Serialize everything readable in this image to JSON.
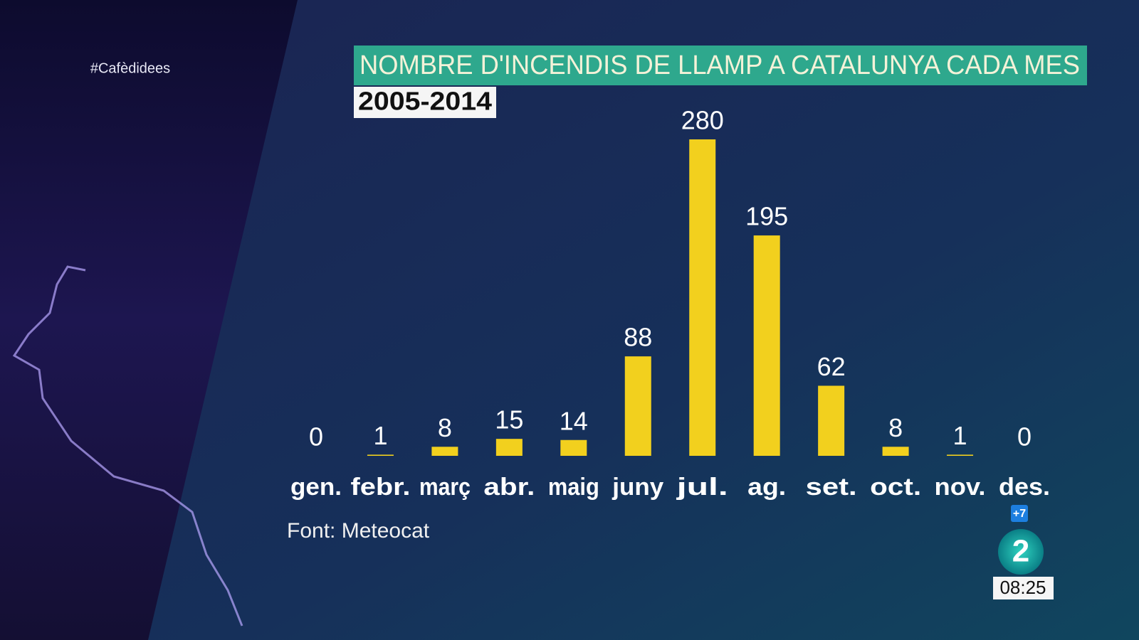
{
  "chart_data": {
    "type": "bar",
    "title": "NOMBRE D'INCENDIS DE LLAMP A CATALUNYA CADA MES",
    "subtitle": "2005-2014",
    "categories": [
      "gen.",
      "febr.",
      "març",
      "abr.",
      "maig",
      "juny",
      "jul.",
      "ag.",
      "set.",
      "oct.",
      "nov.",
      "des."
    ],
    "values": [
      0,
      1,
      8,
      15,
      14,
      88,
      280,
      195,
      62,
      8,
      1,
      0
    ],
    "color": "#f2d01e",
    "source": "Font: Meteocat"
  },
  "overlay": {
    "hashtag": "#Cafèdidees",
    "channel_plus": "+7",
    "channel": "2",
    "clock": "08:25"
  }
}
